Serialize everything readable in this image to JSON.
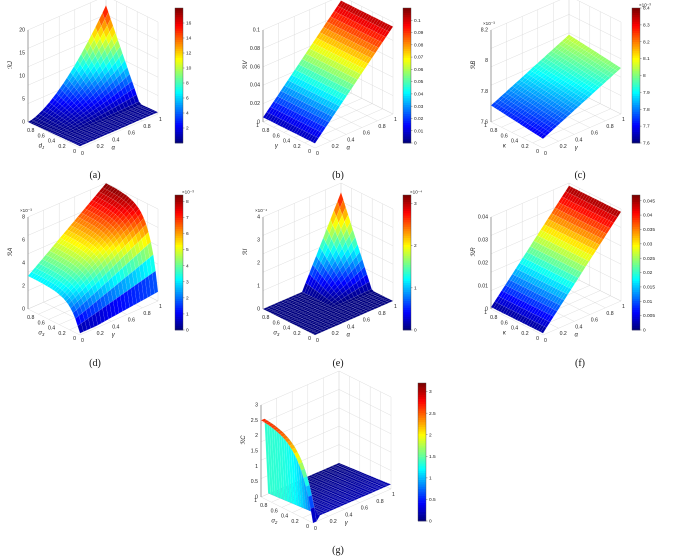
{
  "colors": {
    "colormap": "jet",
    "grid": "#d6d6d6",
    "axis": "#666666",
    "mesh_line": "#ffffff"
  },
  "chart_data": [
    {
      "id": "a",
      "caption": "(a)",
      "type": "surface3d",
      "xlabel": "d_J",
      "ylabel": "α",
      "zlabel": "ℛ_J",
      "x_ticks": [
        "0",
        "0.2",
        "0.4",
        "0.6",
        "0.8"
      ],
      "y_ticks": [
        "0",
        "0.2",
        "0.4",
        "0.6",
        "0.8",
        "1"
      ],
      "z_ticks": [
        "0",
        "5",
        "10",
        "15",
        "20"
      ],
      "z_range": [
        0,
        20
      ],
      "z_multiplier": "",
      "colorbar": {
        "range": [
          0,
          18
        ],
        "ticks": [
          "2",
          "4",
          "6",
          "8",
          "10",
          "12",
          "14",
          "16"
        ],
        "multiplier": ""
      }
    },
    {
      "id": "b",
      "caption": "(b)",
      "type": "surface3d",
      "xlabel": "γ",
      "ylabel": "α",
      "zlabel": "ℛ_V",
      "x_ticks": [
        "0",
        "0.2",
        "0.4",
        "0.6",
        "0.8",
        "1"
      ],
      "y_ticks": [
        "0",
        "0.2",
        "0.4",
        "0.6",
        "0.8",
        "1"
      ],
      "z_ticks": [
        "0",
        "0.02",
        "0.04",
        "0.06",
        "0.08",
        "0.1"
      ],
      "z_range": [
        0,
        0.11
      ],
      "z_multiplier": "",
      "colorbar": {
        "range": [
          0,
          0.11
        ],
        "ticks": [
          "0",
          "0.01",
          "0.02",
          "0.03",
          "0.04",
          "0.05",
          "0.06",
          "0.07",
          "0.08",
          "0.09",
          "0.1"
        ],
        "multiplier": ""
      }
    },
    {
      "id": "c",
      "caption": "(c)",
      "type": "surface3d",
      "xlabel": "κ",
      "ylabel": "γ",
      "zlabel": "ℛ_B",
      "x_ticks": [
        "0",
        "0.2",
        "0.4",
        "0.6",
        "0.8",
        "1"
      ],
      "y_ticks": [
        "0",
        "0.2",
        "0.4",
        "0.6",
        "0.8",
        "1"
      ],
      "z_ticks": [
        "7.6",
        "7.8",
        "8",
        "8.2"
      ],
      "z_range": [
        7.6,
        8.3
      ],
      "z_multiplier": "×10⁻³",
      "colorbar": {
        "range": [
          7.6,
          8.4
        ],
        "ticks": [
          "7.6",
          "7.7",
          "7.8",
          "7.9",
          "8",
          "8.1",
          "8.2",
          "8.3",
          "8.4"
        ],
        "multiplier": "×10⁻³"
      }
    },
    {
      "id": "d",
      "caption": "(d)",
      "type": "surface3d",
      "xlabel": "σ_3",
      "ylabel": "γ",
      "zlabel": "ℛ_A",
      "x_ticks": [
        "0",
        "0.2",
        "0.4",
        "0.6",
        "0.8"
      ],
      "y_ticks": [
        "0",
        "0.2",
        "0.4",
        "0.6",
        "0.8",
        "1"
      ],
      "z_ticks": [
        "0",
        "2",
        "4",
        "6",
        "8"
      ],
      "z_range": [
        0,
        8
      ],
      "z_multiplier": "×10⁻³",
      "colorbar": {
        "range": [
          0,
          8.4
        ],
        "ticks": [
          "0",
          "1",
          "2",
          "3",
          "4",
          "5",
          "6",
          "7",
          "8"
        ],
        "multiplier": "×10⁻³"
      }
    },
    {
      "id": "e",
      "caption": "(e)",
      "type": "surface3d",
      "xlabel": "σ_3",
      "ylabel": "α",
      "zlabel": "ℛ_I",
      "x_ticks": [
        "0",
        "0.2",
        "0.4",
        "0.6",
        "0.8"
      ],
      "y_ticks": [
        "0",
        "0.2",
        "0.4",
        "0.6",
        "0.8",
        "1"
      ],
      "z_ticks": [
        "0",
        "1",
        "2",
        "3",
        "4"
      ],
      "z_range": [
        0,
        4
      ],
      "z_multiplier": "×10⁻⁴",
      "colorbar": {
        "range": [
          0,
          3.2
        ],
        "ticks": [
          "0",
          "1",
          "2",
          "3"
        ],
        "multiplier": "×10⁻⁴"
      }
    },
    {
      "id": "f",
      "caption": "(f)",
      "type": "surface3d",
      "xlabel": "κ",
      "ylabel": "α",
      "zlabel": "ℛ_R",
      "x_ticks": [
        "0",
        "0.2",
        "0.4",
        "0.6",
        "0.8",
        "1"
      ],
      "y_ticks": [
        "0",
        "0.2",
        "0.4",
        "0.6",
        "0.8",
        "1"
      ],
      "z_ticks": [
        "0",
        "0.01",
        "0.02",
        "0.03",
        "0.04"
      ],
      "z_range": [
        0,
        0.045
      ],
      "z_multiplier": "",
      "colorbar": {
        "range": [
          0,
          0.047
        ],
        "ticks": [
          "0",
          "0.005",
          "0.01",
          "0.015",
          "0.02",
          "0.025",
          "0.03",
          "0.035",
          "0.04",
          "0.045"
        ],
        "multiplier": ""
      }
    },
    {
      "id": "g",
      "caption": "(g)",
      "type": "surface3d",
      "xlabel": "σ_2",
      "ylabel": "γ",
      "zlabel": "ℛ_C",
      "x_ticks": [
        "0",
        "0.2",
        "0.4",
        "0.6",
        "0.8",
        "1"
      ],
      "y_ticks": [
        "0",
        "0.2",
        "0.4",
        "0.6",
        "0.8",
        "1"
      ],
      "z_ticks": [
        "0",
        "0.5",
        "1",
        "1.5",
        "2",
        "2.5",
        "3"
      ],
      "z_range": [
        0,
        3.2
      ],
      "z_multiplier": "",
      "colorbar": {
        "range": [
          0,
          3.2
        ],
        "ticks": [
          "0",
          "0.5",
          "1",
          "1.5",
          "2",
          "2.5",
          "3"
        ],
        "multiplier": ""
      }
    }
  ]
}
